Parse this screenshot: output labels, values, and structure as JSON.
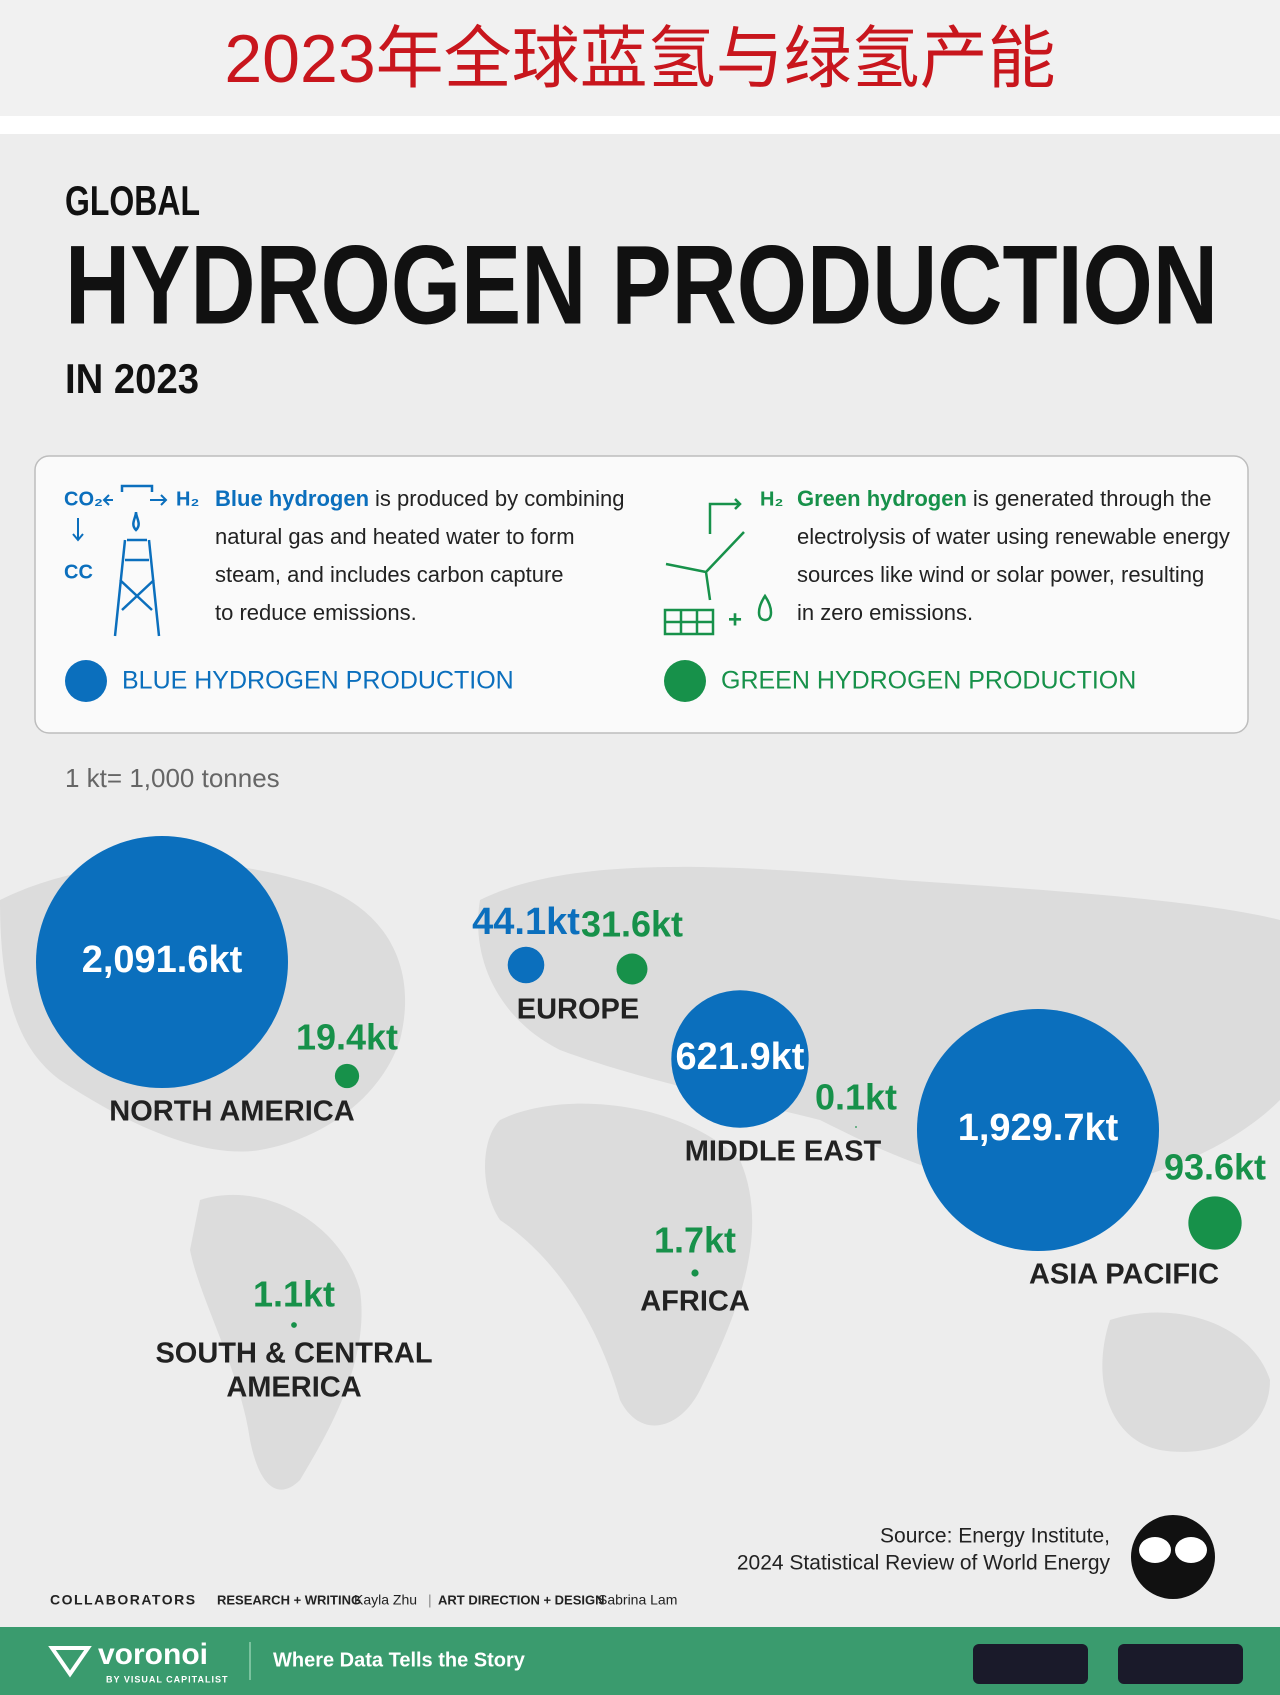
{
  "banner_title": "2023年全球蓝氢与绿氢产能",
  "header": {
    "kicker": "GLOBAL",
    "title": "HYDROGEN PRODUCTION",
    "subtitle": "IN 2023"
  },
  "legend": {
    "blue": {
      "icon": {
        "co2": "CO₂",
        "h2": "H₂",
        "cc": "CC"
      },
      "term": "Blue hydrogen",
      "lines": [
        "is produced by combining",
        "natural gas and heated water to form",
        "steam, and includes carbon capture",
        "to reduce emissions."
      ],
      "key": "BLUE HYDROGEN PRODUCTION"
    },
    "green": {
      "icon": {
        "h2": "H₂",
        "plus": "+"
      },
      "term": "Green hydrogen",
      "lines": [
        "is generated through the",
        "electrolysis of water using renewable energy",
        "sources like wind or solar power, resulting",
        "in zero emissions."
      ],
      "key": "GREEN HYDROGEN PRODUCTION"
    }
  },
  "unit_note": "1 kt= 1,000 tonnes",
  "colors": {
    "blue": "#0b6fbd",
    "green": "#17914a"
  },
  "regions": [
    {
      "name": [
        "NORTH AMERICA"
      ],
      "blue": 2091.6,
      "blue_label": "2,091.6kt",
      "green": 19.4,
      "green_label": "19.4kt"
    },
    {
      "name": [
        "EUROPE"
      ],
      "blue": 44.1,
      "blue_label": "44.1kt",
      "green": 31.6,
      "green_label": "31.6kt"
    },
    {
      "name": [
        "MIDDLE EAST"
      ],
      "blue": 621.9,
      "blue_label": "621.9kt",
      "green": 0.1,
      "green_label": "0.1kt"
    },
    {
      "name": [
        "ASIA PACIFIC"
      ],
      "blue": 1929.7,
      "blue_label": "1,929.7kt",
      "green": 93.6,
      "green_label": "93.6kt"
    },
    {
      "name": [
        "AFRICA"
      ],
      "green": 1.7,
      "green_label": "1.7kt"
    },
    {
      "name": [
        "SOUTH & CENTRAL",
        "AMERICA"
      ],
      "green": 1.1,
      "green_label": "1.1kt"
    }
  ],
  "source": [
    "Source: Energy Institute,",
    "2024 Statistical Review of World Energy"
  ],
  "credits": {
    "label": "COLLABORATORS",
    "role1": "RESEARCH + WRITING",
    "person1": "Kayla Zhu",
    "sep": "|",
    "role2": "ART DIRECTION + DESIGN",
    "person2": "Sabrina Lam"
  },
  "footer": {
    "brand": "voronoi",
    "brand_sub": "BY VISUAL CAPITALIST",
    "tagline": "Where Data Tells the Story"
  }
}
